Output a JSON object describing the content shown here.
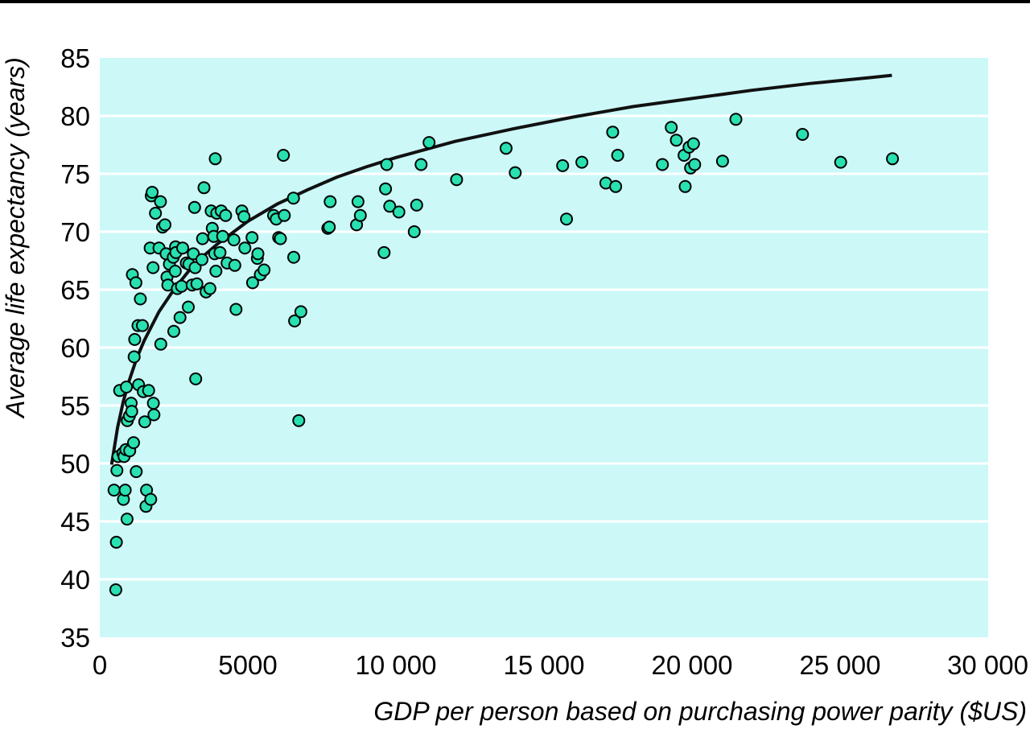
{
  "chart_data": {
    "type": "scatter",
    "title": "",
    "xlabel": "GDP per person based on purchasing power parity ($US)",
    "ylabel": "Average life expectancy (years)",
    "xlim": [
      0,
      30000
    ],
    "ylim": [
      35,
      85
    ],
    "x_ticks": [
      0,
      5000,
      10000,
      15000,
      20000,
      25000,
      30000
    ],
    "x_tick_labels": [
      "0",
      "5000",
      "10 000",
      "15 000",
      "20 000",
      "25 000",
      "30 000"
    ],
    "y_ticks": [
      35,
      40,
      45,
      50,
      55,
      60,
      65,
      70,
      75,
      80,
      85
    ],
    "y_tick_labels": [
      "35",
      "40",
      "45",
      "50",
      "55",
      "60",
      "65",
      "70",
      "75",
      "80",
      "85"
    ],
    "grid": "horizontal",
    "colors": {
      "plot_background": "#ccf8f8",
      "marker_fill": "#29e0b0",
      "marker_edge": "#000000",
      "curve": "#111111",
      "grid": "#ffffff"
    },
    "series": [
      {
        "points": [
          [
            480,
            47.7
          ],
          [
            540,
            39.1
          ],
          [
            560,
            43.2
          ],
          [
            580,
            49.4
          ],
          [
            620,
            50.6
          ],
          [
            670,
            56.3
          ],
          [
            780,
            50.9
          ],
          [
            800,
            46.9
          ],
          [
            820,
            50.6
          ],
          [
            860,
            47.7
          ],
          [
            880,
            51.2
          ],
          [
            900,
            56.6
          ],
          [
            920,
            45.2
          ],
          [
            930,
            53.7
          ],
          [
            1000,
            54.1
          ],
          [
            1010,
            51.1
          ],
          [
            1060,
            55.2
          ],
          [
            1080,
            54.5
          ],
          [
            1100,
            66.3
          ],
          [
            1140,
            51.8
          ],
          [
            1160,
            59.2
          ],
          [
            1180,
            60.7
          ],
          [
            1220,
            65.6
          ],
          [
            1230,
            49.3
          ],
          [
            1290,
            61.9
          ],
          [
            1310,
            56.8
          ],
          [
            1370,
            64.2
          ],
          [
            1440,
            61.9
          ],
          [
            1470,
            56.2
          ],
          [
            1520,
            53.6
          ],
          [
            1560,
            46.3
          ],
          [
            1580,
            47.7
          ],
          [
            1650,
            56.3
          ],
          [
            1700,
            68.6
          ],
          [
            1720,
            46.9
          ],
          [
            1740,
            73.1
          ],
          [
            1770,
            73.4
          ],
          [
            1800,
            66.9
          ],
          [
            1810,
            55.2
          ],
          [
            1830,
            54.2
          ],
          [
            1880,
            71.6
          ],
          [
            2000,
            68.6
          ],
          [
            2050,
            72.6
          ],
          [
            2060,
            60.3
          ],
          [
            2120,
            70.4
          ],
          [
            2200,
            70.6
          ],
          [
            2240,
            68.1
          ],
          [
            2270,
            66.1
          ],
          [
            2300,
            65.4
          ],
          [
            2350,
            67.2
          ],
          [
            2480,
            67.8
          ],
          [
            2500,
            61.4
          ],
          [
            2550,
            66.6
          ],
          [
            2560,
            68.7
          ],
          [
            2570,
            68.2
          ],
          [
            2620,
            65.1
          ],
          [
            2710,
            62.6
          ],
          [
            2760,
            65.3
          ],
          [
            2800,
            68.6
          ],
          [
            2920,
            67.3
          ],
          [
            2990,
            63.5
          ],
          [
            3010,
            67.2
          ],
          [
            3120,
            65.4
          ],
          [
            3160,
            68.1
          ],
          [
            3200,
            72.1
          ],
          [
            3220,
            66.9
          ],
          [
            3240,
            57.3
          ],
          [
            3280,
            65.5
          ],
          [
            3450,
            67.6
          ],
          [
            3470,
            69.4
          ],
          [
            3520,
            73.8
          ],
          [
            3590,
            64.8
          ],
          [
            3720,
            65.1
          ],
          [
            3760,
            71.8
          ],
          [
            3800,
            70.3
          ],
          [
            3850,
            69.6
          ],
          [
            3880,
            68.1
          ],
          [
            3900,
            76.3
          ],
          [
            3920,
            66.6
          ],
          [
            3950,
            71.6
          ],
          [
            4060,
            68.2
          ],
          [
            4100,
            71.8
          ],
          [
            4150,
            69.6
          ],
          [
            4250,
            71.4
          ],
          [
            4300,
            67.3
          ],
          [
            4530,
            69.3
          ],
          [
            4560,
            67.1
          ],
          [
            4600,
            63.3
          ],
          [
            4800,
            71.8
          ],
          [
            4870,
            71.3
          ],
          [
            4900,
            68.6
          ],
          [
            5140,
            69.5
          ],
          [
            5160,
            65.6
          ],
          [
            5320,
            67.7
          ],
          [
            5340,
            68.1
          ],
          [
            5420,
            66.3
          ],
          [
            5550,
            66.7
          ],
          [
            5870,
            71.4
          ],
          [
            5960,
            71.1
          ],
          [
            6040,
            69.5
          ],
          [
            6100,
            69.4
          ],
          [
            6200,
            76.6
          ],
          [
            6230,
            71.4
          ],
          [
            6540,
            72.9
          ],
          [
            6550,
            67.8
          ],
          [
            6580,
            62.3
          ],
          [
            6720,
            53.7
          ],
          [
            6790,
            63.1
          ],
          [
            7700,
            70.3
          ],
          [
            7750,
            70.4
          ],
          [
            7780,
            72.6
          ],
          [
            8670,
            70.6
          ],
          [
            8720,
            72.6
          ],
          [
            8800,
            71.4
          ],
          [
            9600,
            68.2
          ],
          [
            9650,
            73.7
          ],
          [
            9690,
            75.8
          ],
          [
            9790,
            72.2
          ],
          [
            10100,
            71.7
          ],
          [
            10620,
            70.0
          ],
          [
            10700,
            72.3
          ],
          [
            10850,
            75.8
          ],
          [
            11120,
            77.7
          ],
          [
            12050,
            74.5
          ],
          [
            13720,
            77.2
          ],
          [
            14030,
            75.1
          ],
          [
            15630,
            75.7
          ],
          [
            15760,
            71.1
          ],
          [
            16280,
            76.0
          ],
          [
            17090,
            74.2
          ],
          [
            17320,
            78.6
          ],
          [
            17420,
            73.9
          ],
          [
            17490,
            76.6
          ],
          [
            19000,
            75.8
          ],
          [
            19300,
            79.0
          ],
          [
            19470,
            77.9
          ],
          [
            19730,
            76.6
          ],
          [
            19770,
            73.9
          ],
          [
            19900,
            77.3
          ],
          [
            19950,
            75.5
          ],
          [
            20050,
            77.6
          ],
          [
            20090,
            75.8
          ],
          [
            21030,
            76.1
          ],
          [
            21480,
            79.7
          ],
          [
            23730,
            78.4
          ],
          [
            25020,
            76.0
          ],
          [
            26770,
            76.3
          ]
        ]
      }
    ],
    "trend_curve": {
      "points": [
        [
          400,
          49.9
        ],
        [
          600,
          53.1
        ],
        [
          800,
          55.4
        ],
        [
          1000,
          57.2
        ],
        [
          1250,
          59.1
        ],
        [
          1500,
          60.6
        ],
        [
          2000,
          63.1
        ],
        [
          2500,
          65.0
        ],
        [
          3000,
          66.6
        ],
        [
          3500,
          67.9
        ],
        [
          4000,
          69.0
        ],
        [
          5000,
          70.9
        ],
        [
          6000,
          72.4
        ],
        [
          7000,
          73.6
        ],
        [
          8000,
          74.7
        ],
        [
          9000,
          75.6
        ],
        [
          10000,
          76.4
        ],
        [
          12000,
          77.8
        ],
        [
          14000,
          78.9
        ],
        [
          16000,
          79.9
        ],
        [
          18000,
          80.8
        ],
        [
          20000,
          81.5
        ],
        [
          22000,
          82.2
        ],
        [
          24000,
          82.8
        ],
        [
          26000,
          83.3
        ],
        [
          26750,
          83.5
        ]
      ]
    }
  }
}
